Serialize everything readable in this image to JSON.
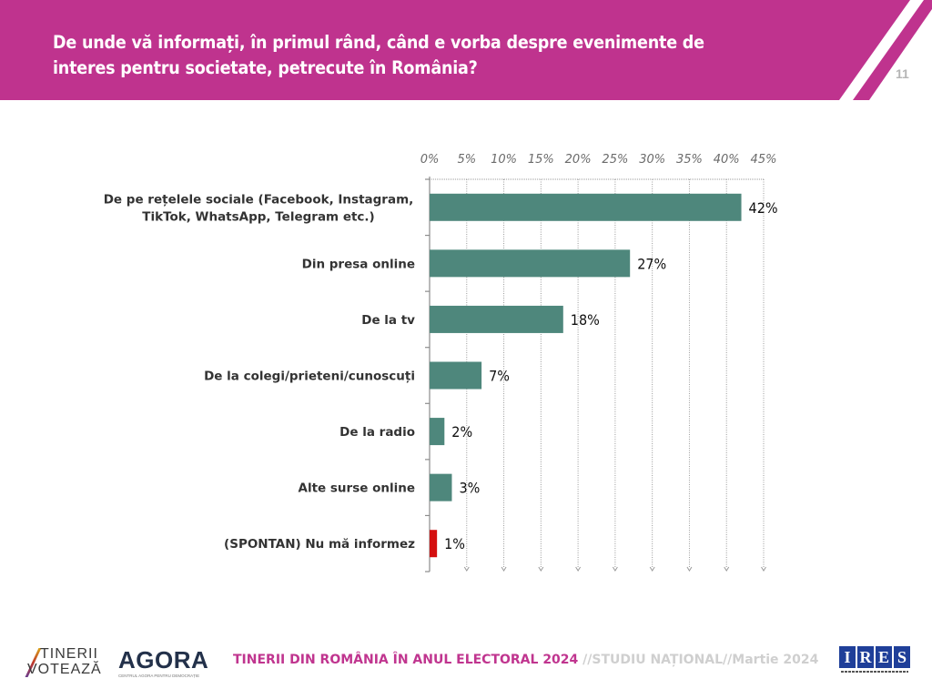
{
  "header": {
    "title_line1": "De unde vă informați, în primul rând, când e vorba despre evenimente de",
    "title_line2": "interes pentru societate, petrecute în România?",
    "page_number": "11",
    "band_color": "#bf338e"
  },
  "chart_data": {
    "type": "bar",
    "orientation": "horizontal",
    "title": "De unde vă informați, în primul rând, când e vorba despre evenimente de interes pentru societate, petrecute în România?",
    "xlabel": "",
    "ylabel": "",
    "xlim": [
      0,
      45
    ],
    "x_ticks": [
      0,
      5,
      10,
      15,
      20,
      25,
      30,
      35,
      40,
      45
    ],
    "x_tick_labels": [
      "0%",
      "5%",
      "10%",
      "15%",
      "20%",
      "25%",
      "30%",
      "35%",
      "40%",
      "45%"
    ],
    "x_axis_position": "top",
    "grid": "vertical dotted",
    "categories": [
      [
        "De pe rețelele sociale (Facebook, Instagram,",
        "TikTok, WhatsApp, Telegram etc.)"
      ],
      [
        "Din presa online"
      ],
      [
        "De la tv"
      ],
      [
        "De la colegi/prieteni/cunoscuți"
      ],
      [
        "De la radio"
      ],
      [
        "Alte surse online"
      ],
      [
        "(SPONTAN) Nu mă informez"
      ]
    ],
    "values": [
      42,
      27,
      18,
      7,
      2,
      3,
      1
    ],
    "value_labels": [
      "42%",
      "27%",
      "18%",
      "7%",
      "2%",
      "3%",
      "1%"
    ],
    "bar_colors": [
      "#4e877c",
      "#4e877c",
      "#4e877c",
      "#4e877c",
      "#4e877c",
      "#4e877c",
      "#d40f0f"
    ],
    "legend": "none"
  },
  "footer": {
    "main": "TINERII DIN ROMÂNIA ÎN ANUL ELECTORAL 2024",
    "sub": " //STUDIU NAȚIONAL//Martie 2024",
    "logo_tinerii_line1": "TINERII",
    "logo_tinerii_line2": "VOTEAZĂ",
    "logo_agora": "AGORA",
    "logo_agora_tagline": "CENTRUL AGORA PENTRU DEMOCRAȚIE",
    "logo_ires_letters": [
      "I",
      "R",
      "E",
      "S"
    ]
  }
}
